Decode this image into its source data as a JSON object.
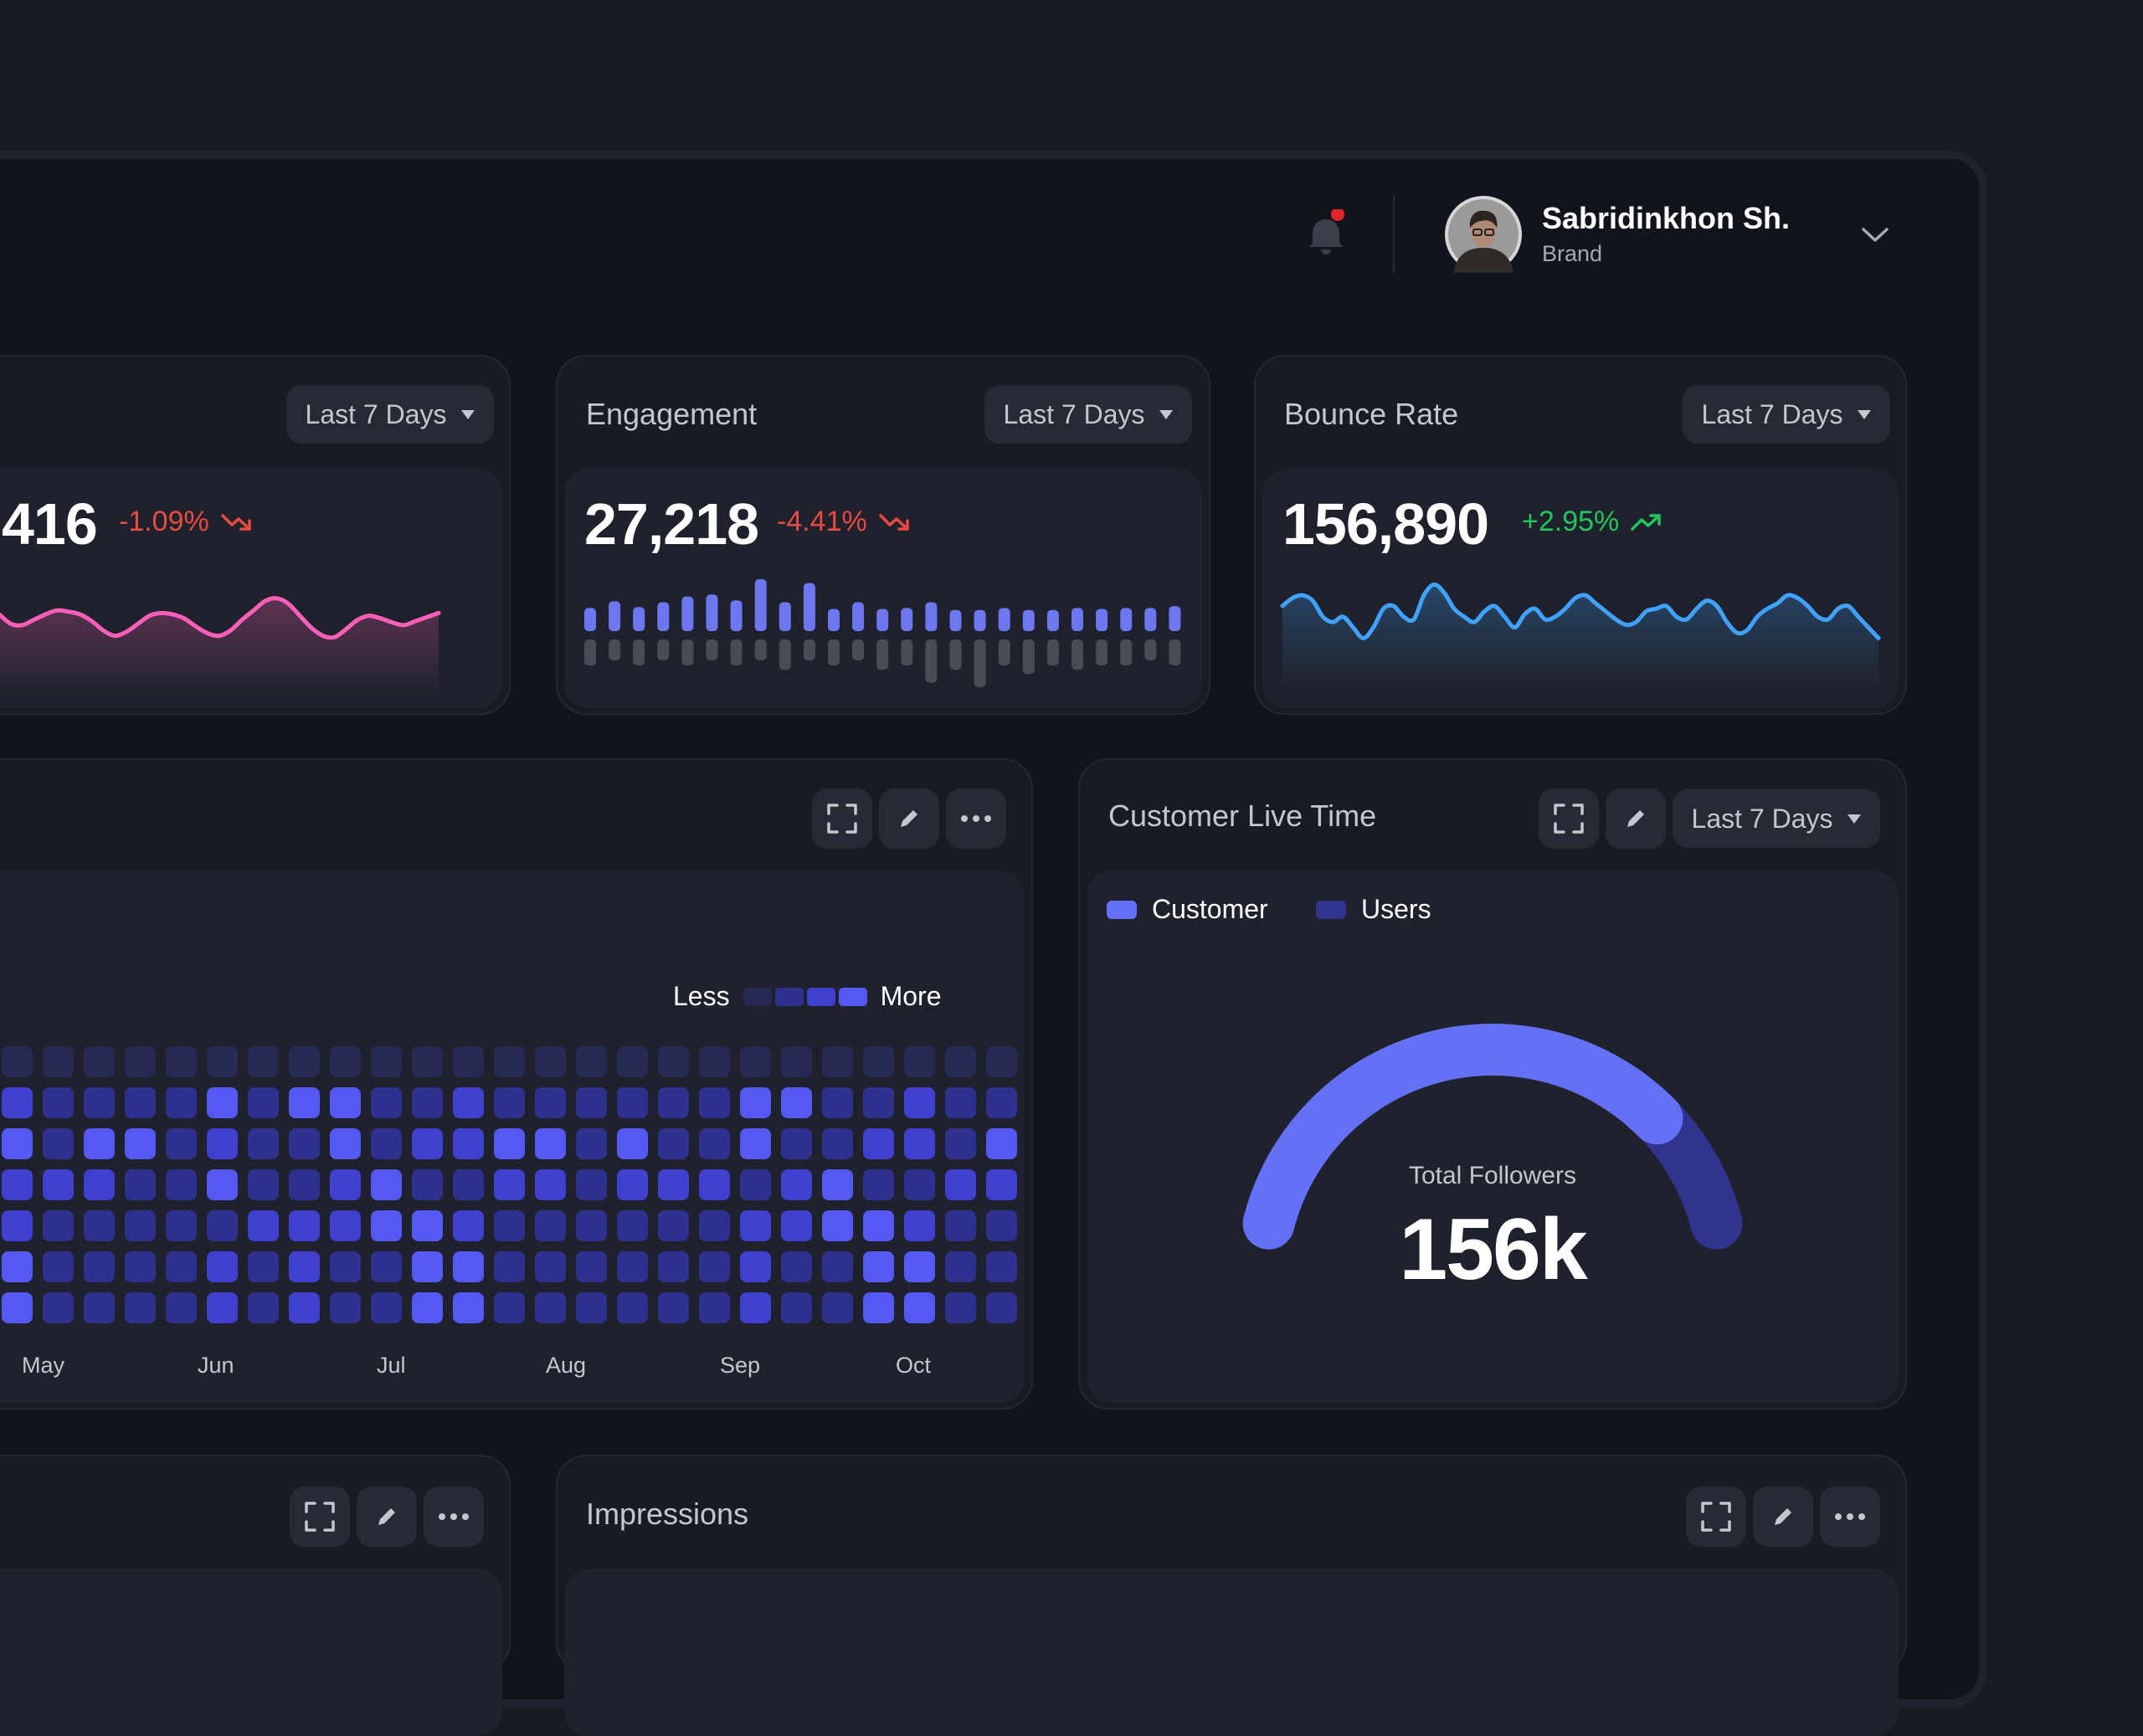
{
  "header": {
    "user_name": "Sabridinkhon Sh.",
    "user_role": "Brand",
    "has_notification": true
  },
  "filter_label": "Last 7 Days",
  "metrics": [
    {
      "title": "",
      "value": "416",
      "delta": "-1.09%",
      "trend": "down",
      "line_color": "#ff5fb8"
    },
    {
      "title": "Engagement",
      "value": "27,218",
      "delta": "-4.41%",
      "trend": "down"
    },
    {
      "title": "Bounce Rate",
      "value": "156,890",
      "delta": "+2.95%",
      "trend": "up",
      "line_color": "#3fa2ff"
    }
  ],
  "heatmap": {
    "legend_less": "Less",
    "legend_more": "More",
    "months": [
      "May",
      "Jun",
      "Jul",
      "Aug",
      "Sep",
      "Oct"
    ],
    "colors": [
      "#272a52",
      "#2f318e",
      "#3f40cf",
      "#5458f5"
    ],
    "grid": [
      [
        0,
        0,
        0,
        0,
        0,
        0,
        0,
        0,
        0,
        0,
        0,
        0,
        0,
        0,
        0,
        0,
        0,
        0,
        0,
        0,
        0,
        0,
        0,
        0,
        0
      ],
      [
        2,
        1,
        1,
        1,
        1,
        3,
        1,
        3,
        3,
        1,
        1,
        2,
        1,
        1,
        1,
        1,
        1,
        1,
        3,
        3,
        1,
        1,
        2,
        1,
        1
      ],
      [
        3,
        1,
        3,
        3,
        1,
        2,
        1,
        1,
        3,
        1,
        2,
        2,
        3,
        3,
        1,
        3,
        1,
        1,
        3,
        1,
        1,
        2,
        2,
        1,
        3
      ],
      [
        2,
        2,
        2,
        1,
        1,
        3,
        1,
        1,
        2,
        3,
        1,
        1,
        2,
        2,
        1,
        2,
        2,
        2,
        1,
        2,
        3,
        1,
        1,
        2,
        2
      ],
      [
        2,
        1,
        1,
        1,
        1,
        1,
        2,
        2,
        2,
        3,
        3,
        2,
        1,
        1,
        1,
        1,
        1,
        1,
        2,
        2,
        3,
        3,
        2,
        1,
        1
      ],
      [
        3,
        1,
        1,
        1,
        1,
        2,
        1,
        2,
        1,
        1,
        3,
        3,
        1,
        1,
        1,
        1,
        1,
        1,
        2,
        1,
        1,
        3,
        3,
        1,
        1
      ],
      [
        3,
        1,
        1,
        1,
        1,
        2,
        1,
        2,
        1,
        1,
        3,
        3,
        1,
        1,
        1,
        1,
        1,
        1,
        2,
        1,
        1,
        3,
        3,
        1,
        1
      ]
    ]
  },
  "customer_live_time": {
    "title": "Customer Live Time",
    "legend": [
      {
        "name": "Customer",
        "color": "#6470f5"
      },
      {
        "name": "Users",
        "color": "#31348f"
      }
    ],
    "gauge_label": "Total Followers",
    "gauge_value": "156k",
    "customer_fraction": 0.8
  },
  "impressions": {
    "title": "Impressions"
  },
  "chart_data": [
    {
      "type": "line",
      "title": "",
      "series": [
        {
          "values": [
            54,
            61,
            67,
            70,
            67,
            60,
            53,
            52,
            56,
            60,
            63,
            62,
            60,
            55,
            48,
            44,
            47,
            53,
            59,
            61,
            60,
            57,
            51,
            46,
            44,
            48,
            56,
            63,
            70,
            72,
            68,
            59,
            50,
            44,
            43,
            49,
            56,
            59,
            57,
            54,
            52,
            55,
            58,
            61
          ]
        }
      ]
    },
    {
      "type": "bar",
      "title": "Engagement",
      "series": [
        {
          "values": [
            24,
            31,
            25,
            30,
            36,
            38,
            32,
            54,
            30,
            50,
            23,
            30,
            23,
            24,
            30,
            22,
            22,
            24,
            22,
            22,
            24,
            23,
            24,
            24,
            26
          ]
        },
        {
          "values": [
            30,
            24,
            30,
            24,
            30,
            24,
            30,
            24,
            35,
            24,
            30,
            24,
            35,
            30,
            50,
            35,
            55,
            30,
            40,
            30,
            35,
            30,
            30,
            24,
            30
          ]
        }
      ]
    },
    {
      "type": "line",
      "title": "Bounce Rate",
      "series": [
        {
          "values": [
            60,
            66,
            68,
            64,
            52,
            48,
            52,
            44,
            36,
            44,
            58,
            60,
            52,
            50,
            68,
            76,
            70,
            58,
            52,
            48,
            56,
            60,
            52,
            44,
            54,
            58,
            50,
            52,
            58,
            66,
            68,
            62,
            56,
            50,
            46,
            48,
            56,
            58,
            60,
            52,
            50,
            58,
            64,
            60,
            48,
            40,
            42,
            52,
            58,
            62,
            68,
            66,
            60,
            52,
            50,
            58,
            60,
            52,
            44,
            36
          ]
        }
      ]
    }
  ]
}
